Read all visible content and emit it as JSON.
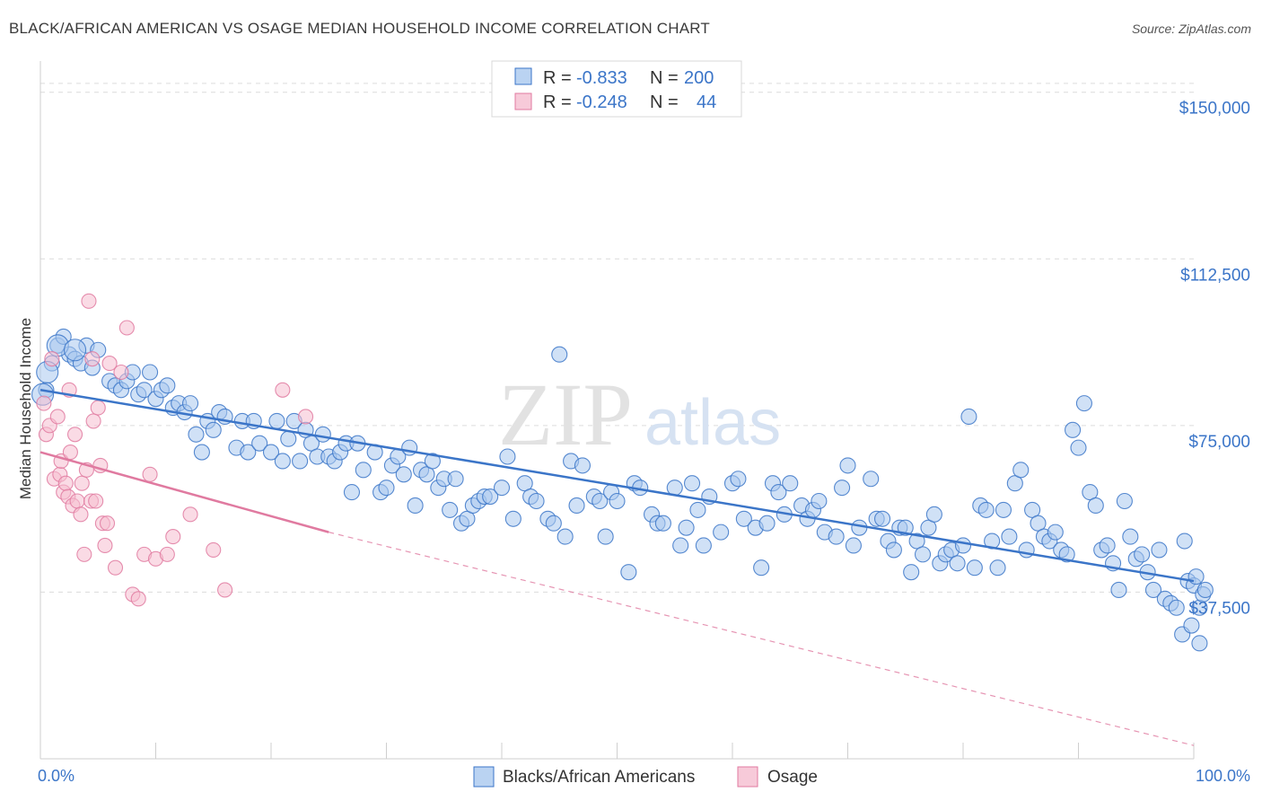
{
  "title": "BLACK/AFRICAN AMERICAN VS OSAGE MEDIAN HOUSEHOLD INCOME CORRELATION CHART",
  "source": "Source: ZipAtlas.com",
  "watermark": {
    "zip": "ZIP",
    "atlas": "atlas"
  },
  "colors": {
    "blue": "#3b75c8",
    "blue_fill": "#a9c8ef",
    "pink": "#e07aa0",
    "pink_fill": "#f5bdd0",
    "grid": "#dcdcdc"
  },
  "legend": {
    "rows": [
      {
        "r_label": "R =",
        "r_value": "-0.833",
        "n_label": "N =",
        "n_value": "200",
        "series": "blue"
      },
      {
        "r_label": "R =",
        "r_value": "-0.248",
        "n_label": "N =",
        "n_value": "44",
        "series": "pink"
      }
    ]
  },
  "bottom_legend": [
    {
      "label": "Blacks/African Americans",
      "series": "blue"
    },
    {
      "label": "Osage",
      "series": "pink"
    }
  ],
  "chart_data": {
    "type": "scatter",
    "title": "BLACK/AFRICAN AMERICAN VS OSAGE MEDIAN HOUSEHOLD INCOME CORRELATION CHART",
    "xlabel": "",
    "ylabel": "Median Household Income",
    "xlim": [
      0,
      100
    ],
    "ylim": [
      0,
      155000
    ],
    "x_tick_labels": [
      "0.0%",
      "100.0%"
    ],
    "y_ticks": [
      37500,
      75000,
      112500,
      150000
    ],
    "y_tick_labels": [
      "$37,500",
      "$75,000",
      "$112,500",
      "$150,000"
    ],
    "grid": true,
    "legend_position": "top-center",
    "series": [
      {
        "name": "Blacks/African Americans",
        "color": "#3b75c8",
        "trend": {
          "x": [
            0,
            100
          ],
          "y": [
            83000,
            40000
          ],
          "style": "solid"
        },
        "points": [
          [
            0.5,
            83000
          ],
          [
            1,
            89000
          ],
          [
            1.5,
            93000
          ],
          [
            2,
            95000
          ],
          [
            2.5,
            91000
          ],
          [
            3,
            90000
          ],
          [
            3.5,
            89000
          ],
          [
            4,
            93000
          ],
          [
            4.5,
            88000
          ],
          [
            5,
            92000
          ],
          [
            6,
            85000
          ],
          [
            6.5,
            84000
          ],
          [
            7,
            83000
          ],
          [
            7.5,
            85000
          ],
          [
            8,
            87000
          ],
          [
            8.5,
            82000
          ],
          [
            9,
            83000
          ],
          [
            9.5,
            87000
          ],
          [
            10,
            81000
          ],
          [
            10.5,
            83000
          ],
          [
            11,
            84000
          ],
          [
            11.5,
            79000
          ],
          [
            12,
            80000
          ],
          [
            12.5,
            78000
          ],
          [
            13,
            80000
          ],
          [
            13.5,
            73000
          ],
          [
            14,
            69000
          ],
          [
            14.5,
            76000
          ],
          [
            15,
            74000
          ],
          [
            15.5,
            78000
          ],
          [
            16,
            77000
          ],
          [
            17,
            70000
          ],
          [
            17.5,
            76000
          ],
          [
            18,
            69000
          ],
          [
            18.5,
            76000
          ],
          [
            19,
            71000
          ],
          [
            20,
            69000
          ],
          [
            20.5,
            76000
          ],
          [
            21,
            67000
          ],
          [
            21.5,
            72000
          ],
          [
            22,
            76000
          ],
          [
            22.5,
            67000
          ],
          [
            23,
            74000
          ],
          [
            23.5,
            71000
          ],
          [
            24,
            68000
          ],
          [
            24.5,
            73000
          ],
          [
            25,
            68000
          ],
          [
            25.5,
            67000
          ],
          [
            26,
            69000
          ],
          [
            26.5,
            71000
          ],
          [
            27,
            60000
          ],
          [
            27.5,
            71000
          ],
          [
            28,
            65000
          ],
          [
            29,
            69000
          ],
          [
            29.5,
            60000
          ],
          [
            30,
            61000
          ],
          [
            30.5,
            66000
          ],
          [
            31,
            68000
          ],
          [
            31.5,
            64000
          ],
          [
            32,
            70000
          ],
          [
            32.5,
            57000
          ],
          [
            33,
            65000
          ],
          [
            33.5,
            64000
          ],
          [
            34,
            67000
          ],
          [
            34.5,
            61000
          ],
          [
            35,
            63000
          ],
          [
            35.5,
            56000
          ],
          [
            36,
            63000
          ],
          [
            36.5,
            53000
          ],
          [
            37,
            54000
          ],
          [
            37.5,
            57000
          ],
          [
            38,
            58000
          ],
          [
            38.5,
            59000
          ],
          [
            39,
            59000
          ],
          [
            40,
            61000
          ],
          [
            40.5,
            68000
          ],
          [
            41,
            54000
          ],
          [
            42,
            62000
          ],
          [
            42.5,
            59000
          ],
          [
            43,
            58000
          ],
          [
            44,
            54000
          ],
          [
            44.5,
            53000
          ],
          [
            45,
            91000
          ],
          [
            45.5,
            50000
          ],
          [
            46,
            67000
          ],
          [
            46.5,
            57000
          ],
          [
            47,
            66000
          ],
          [
            48,
            59000
          ],
          [
            48.5,
            58000
          ],
          [
            49,
            50000
          ],
          [
            49.5,
            60000
          ],
          [
            50,
            58000
          ],
          [
            51,
            42000
          ],
          [
            51.5,
            62000
          ],
          [
            52,
            61000
          ],
          [
            53,
            55000
          ],
          [
            53.5,
            53000
          ],
          [
            54,
            53000
          ],
          [
            55,
            61000
          ],
          [
            55.5,
            48000
          ],
          [
            56,
            52000
          ],
          [
            56.5,
            62000
          ],
          [
            57,
            56000
          ],
          [
            57.5,
            48000
          ],
          [
            58,
            59000
          ],
          [
            59,
            51000
          ],
          [
            60,
            62000
          ],
          [
            60.5,
            63000
          ],
          [
            61,
            54000
          ],
          [
            62,
            52000
          ],
          [
            62.5,
            43000
          ],
          [
            63,
            53000
          ],
          [
            63.5,
            62000
          ],
          [
            64,
            60000
          ],
          [
            64.5,
            55000
          ],
          [
            65,
            62000
          ],
          [
            66,
            57000
          ],
          [
            66.5,
            54000
          ],
          [
            67,
            56000
          ],
          [
            67.5,
            58000
          ],
          [
            68,
            51000
          ],
          [
            69,
            50000
          ],
          [
            69.5,
            61000
          ],
          [
            70,
            66000
          ],
          [
            70.5,
            48000
          ],
          [
            71,
            52000
          ],
          [
            72,
            63000
          ],
          [
            72.5,
            54000
          ],
          [
            73,
            54000
          ],
          [
            73.5,
            49000
          ],
          [
            74,
            47000
          ],
          [
            74.5,
            52000
          ],
          [
            75,
            52000
          ],
          [
            75.5,
            42000
          ],
          [
            76,
            49000
          ],
          [
            76.5,
            46000
          ],
          [
            77,
            52000
          ],
          [
            77.5,
            55000
          ],
          [
            78,
            44000
          ],
          [
            78.5,
            46000
          ],
          [
            79,
            47000
          ],
          [
            79.5,
            44000
          ],
          [
            80,
            48000
          ],
          [
            80.5,
            77000
          ],
          [
            81,
            43000
          ],
          [
            81.5,
            57000
          ],
          [
            82,
            56000
          ],
          [
            82.5,
            49000
          ],
          [
            83,
            43000
          ],
          [
            83.5,
            56000
          ],
          [
            84,
            50000
          ],
          [
            84.5,
            62000
          ],
          [
            85,
            65000
          ],
          [
            85.5,
            47000
          ],
          [
            86,
            56000
          ],
          [
            86.5,
            53000
          ],
          [
            87,
            50000
          ],
          [
            87.5,
            49000
          ],
          [
            88,
            51000
          ],
          [
            88.5,
            47000
          ],
          [
            89,
            46000
          ],
          [
            89.5,
            74000
          ],
          [
            90,
            70000
          ],
          [
            90.5,
            80000
          ],
          [
            91,
            60000
          ],
          [
            91.5,
            57000
          ],
          [
            92,
            47000
          ],
          [
            92.5,
            48000
          ],
          [
            93,
            44000
          ],
          [
            93.5,
            38000
          ],
          [
            94,
            58000
          ],
          [
            94.5,
            50000
          ],
          [
            95,
            45000
          ],
          [
            95.5,
            46000
          ],
          [
            96,
            42000
          ],
          [
            96.5,
            38000
          ],
          [
            97,
            47000
          ],
          [
            97.5,
            36000
          ],
          [
            98,
            35000
          ],
          [
            98.5,
            34000
          ],
          [
            99,
            28000
          ],
          [
            99.2,
            49000
          ],
          [
            99.5,
            40000
          ],
          [
            99.8,
            30000
          ],
          [
            100,
            39000
          ],
          [
            100.2,
            41000
          ],
          [
            100.5,
            34000
          ],
          [
            100.8,
            37000
          ],
          [
            101,
            38000
          ],
          [
            100.5,
            26000
          ]
        ],
        "large_points": [
          [
            1.5,
            93000
          ],
          [
            3,
            92000
          ],
          [
            0.6,
            87000
          ],
          [
            0.2,
            82000
          ]
        ]
      },
      {
        "name": "Osage",
        "color": "#e07aa0",
        "trend": {
          "x": [
            0,
            25
          ],
          "y": [
            69000,
            51000
          ],
          "style": "solid",
          "extended_x": [
            25,
            100
          ],
          "extended_y": [
            51000,
            3000
          ],
          "extended_style": "dashed"
        },
        "points": [
          [
            0.3,
            80000
          ],
          [
            0.5,
            73000
          ],
          [
            0.8,
            75000
          ],
          [
            1,
            90000
          ],
          [
            1.2,
            63000
          ],
          [
            1.5,
            77000
          ],
          [
            1.7,
            64000
          ],
          [
            1.8,
            67000
          ],
          [
            2,
            60000
          ],
          [
            2.2,
            62000
          ],
          [
            2.4,
            59000
          ],
          [
            2.5,
            83000
          ],
          [
            2.6,
            69000
          ],
          [
            2.8,
            57000
          ],
          [
            3,
            73000
          ],
          [
            3.2,
            58000
          ],
          [
            3.5,
            55000
          ],
          [
            3.6,
            62000
          ],
          [
            3.8,
            46000
          ],
          [
            4,
            65000
          ],
          [
            4.2,
            103000
          ],
          [
            4.4,
            58000
          ],
          [
            4.5,
            90000
          ],
          [
            4.6,
            76000
          ],
          [
            4.8,
            58000
          ],
          [
            5,
            79000
          ],
          [
            5.2,
            66000
          ],
          [
            5.4,
            53000
          ],
          [
            5.6,
            48000
          ],
          [
            5.8,
            53000
          ],
          [
            6,
            89000
          ],
          [
            6.5,
            43000
          ],
          [
            7,
            87000
          ],
          [
            7.5,
            97000
          ],
          [
            8,
            37000
          ],
          [
            8.5,
            36000
          ],
          [
            9,
            46000
          ],
          [
            9.5,
            64000
          ],
          [
            10,
            45000
          ],
          [
            11,
            46000
          ],
          [
            11.5,
            50000
          ],
          [
            13,
            55000
          ],
          [
            15,
            47000
          ],
          [
            16,
            38000
          ],
          [
            21,
            83000
          ],
          [
            23,
            77000
          ]
        ]
      }
    ]
  }
}
